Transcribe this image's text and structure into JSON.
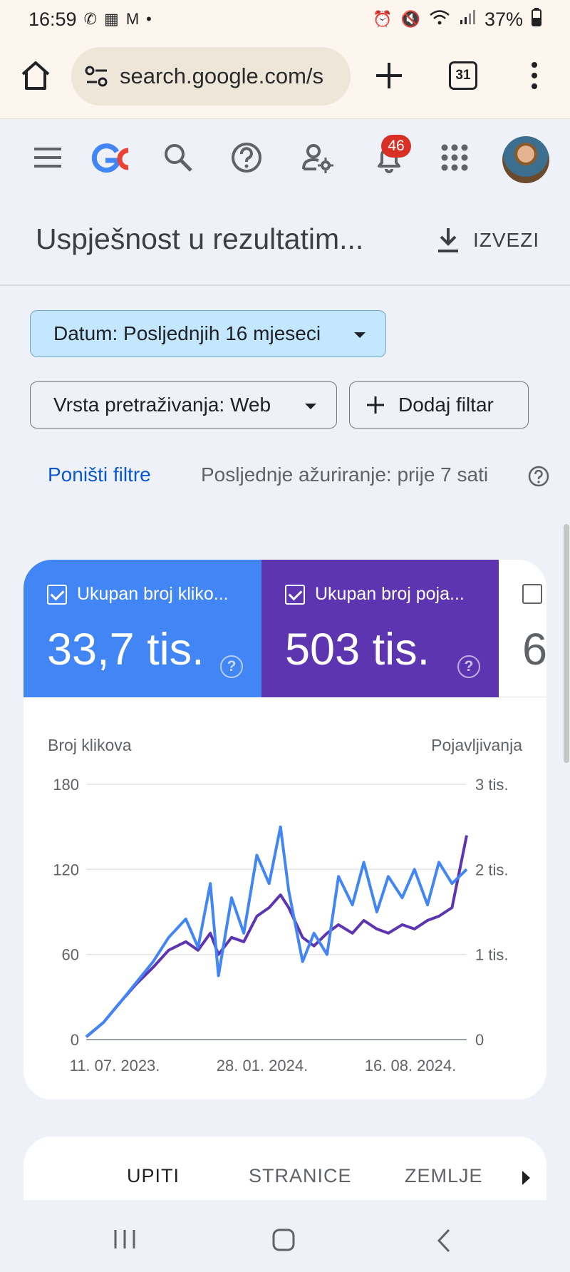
{
  "status_bar": {
    "time": "16:59",
    "battery": "37%",
    "icons": [
      "whatsapp-icon",
      "calendar-icon",
      "gmail-icon",
      "dot-icon",
      "alarm-icon",
      "mute-icon",
      "wifi-icon",
      "signal-icon",
      "battery-icon"
    ]
  },
  "browser": {
    "url": "search.google.com/s",
    "tab_count": "31"
  },
  "header": {
    "notification_count": "46"
  },
  "page": {
    "title": "Uspješnost u rezultatim...",
    "export_label": "IZVEZI"
  },
  "filters": {
    "date_chip": "Datum: Posljednjih 16 mjeseci",
    "type_chip": "Vrsta pretraživanja: Web",
    "add_filter": "Dodaj filtar",
    "reset": "Poništi filtre",
    "last_updated": "Posljednje ažuriranje: prije 7 sati"
  },
  "metrics": [
    {
      "label": "Ukupan broj kliko...",
      "value": "33,7 tis.",
      "color": "#4285f4",
      "checked": true
    },
    {
      "label": "Ukupan broj poja...",
      "value": "503 tis.",
      "color": "#5e35b1",
      "checked": true
    },
    {
      "label": "",
      "value": "6",
      "checked": false
    }
  ],
  "chart_data": {
    "type": "line",
    "ylabel": "Broj klikova",
    "y2label": "Pojavljivanja",
    "ylim": [
      0,
      180
    ],
    "y2lim": [
      0,
      3000
    ],
    "y_ticks": [
      "0",
      "60",
      "120",
      "180"
    ],
    "y2_ticks": [
      "0",
      "1 tis.",
      "2 tis.",
      "3 tis."
    ],
    "x_ticks": [
      "11. 07. 2023.",
      "28. 01. 2024.",
      "16. 08. 2024."
    ],
    "x_range": [
      "2023-07-11",
      "2024-10-19"
    ],
    "grid": true,
    "series": [
      {
        "axis": "left",
        "color": "#4285f4",
        "points": [
          [
            "2023-07-11",
            2
          ],
          [
            "2023-08-01",
            12
          ],
          [
            "2023-08-20",
            25
          ],
          [
            "2023-09-10",
            40
          ],
          [
            "2023-10-01",
            55
          ],
          [
            "2023-10-20",
            72
          ],
          [
            "2023-11-10",
            85
          ],
          [
            "2023-11-25",
            65
          ],
          [
            "2023-12-10",
            110
          ],
          [
            "2023-12-20",
            45
          ],
          [
            "2024-01-05",
            100
          ],
          [
            "2024-01-20",
            75
          ],
          [
            "2024-02-05",
            130
          ],
          [
            "2024-02-20",
            110
          ],
          [
            "2024-03-05",
            150
          ],
          [
            "2024-03-15",
            105
          ],
          [
            "2024-04-01",
            55
          ],
          [
            "2024-04-15",
            75
          ],
          [
            "2024-05-01",
            60
          ],
          [
            "2024-05-15",
            115
          ],
          [
            "2024-06-01",
            95
          ],
          [
            "2024-06-15",
            125
          ],
          [
            "2024-07-01",
            90
          ],
          [
            "2024-07-15",
            115
          ],
          [
            "2024-08-01",
            100
          ],
          [
            "2024-08-16",
            120
          ],
          [
            "2024-09-01",
            95
          ],
          [
            "2024-09-15",
            125
          ],
          [
            "2024-10-01",
            110
          ],
          [
            "2024-10-19",
            120
          ]
        ]
      },
      {
        "axis": "right",
        "color": "#5e35b1",
        "points": [
          [
            "2023-07-11",
            30
          ],
          [
            "2023-08-01",
            200
          ],
          [
            "2023-08-20",
            420
          ],
          [
            "2023-09-10",
            650
          ],
          [
            "2023-10-01",
            850
          ],
          [
            "2023-10-20",
            1050
          ],
          [
            "2023-11-10",
            1150
          ],
          [
            "2023-11-25",
            1050
          ],
          [
            "2023-12-10",
            1250
          ],
          [
            "2023-12-20",
            1000
          ],
          [
            "2024-01-05",
            1200
          ],
          [
            "2024-01-20",
            1150
          ],
          [
            "2024-02-05",
            1450
          ],
          [
            "2024-02-20",
            1550
          ],
          [
            "2024-03-05",
            1700
          ],
          [
            "2024-03-15",
            1550
          ],
          [
            "2024-04-01",
            1200
          ],
          [
            "2024-04-15",
            1100
          ],
          [
            "2024-05-01",
            1250
          ],
          [
            "2024-05-15",
            1350
          ],
          [
            "2024-06-01",
            1250
          ],
          [
            "2024-06-15",
            1400
          ],
          [
            "2024-07-01",
            1300
          ],
          [
            "2024-07-15",
            1250
          ],
          [
            "2024-08-01",
            1350
          ],
          [
            "2024-08-16",
            1300
          ],
          [
            "2024-09-01",
            1400
          ],
          [
            "2024-09-15",
            1450
          ],
          [
            "2024-10-01",
            1550
          ],
          [
            "2024-10-19",
            2400
          ]
        ]
      }
    ]
  },
  "tabs": [
    "UPITI",
    "STRANICE",
    "ZEMLJE"
  ]
}
